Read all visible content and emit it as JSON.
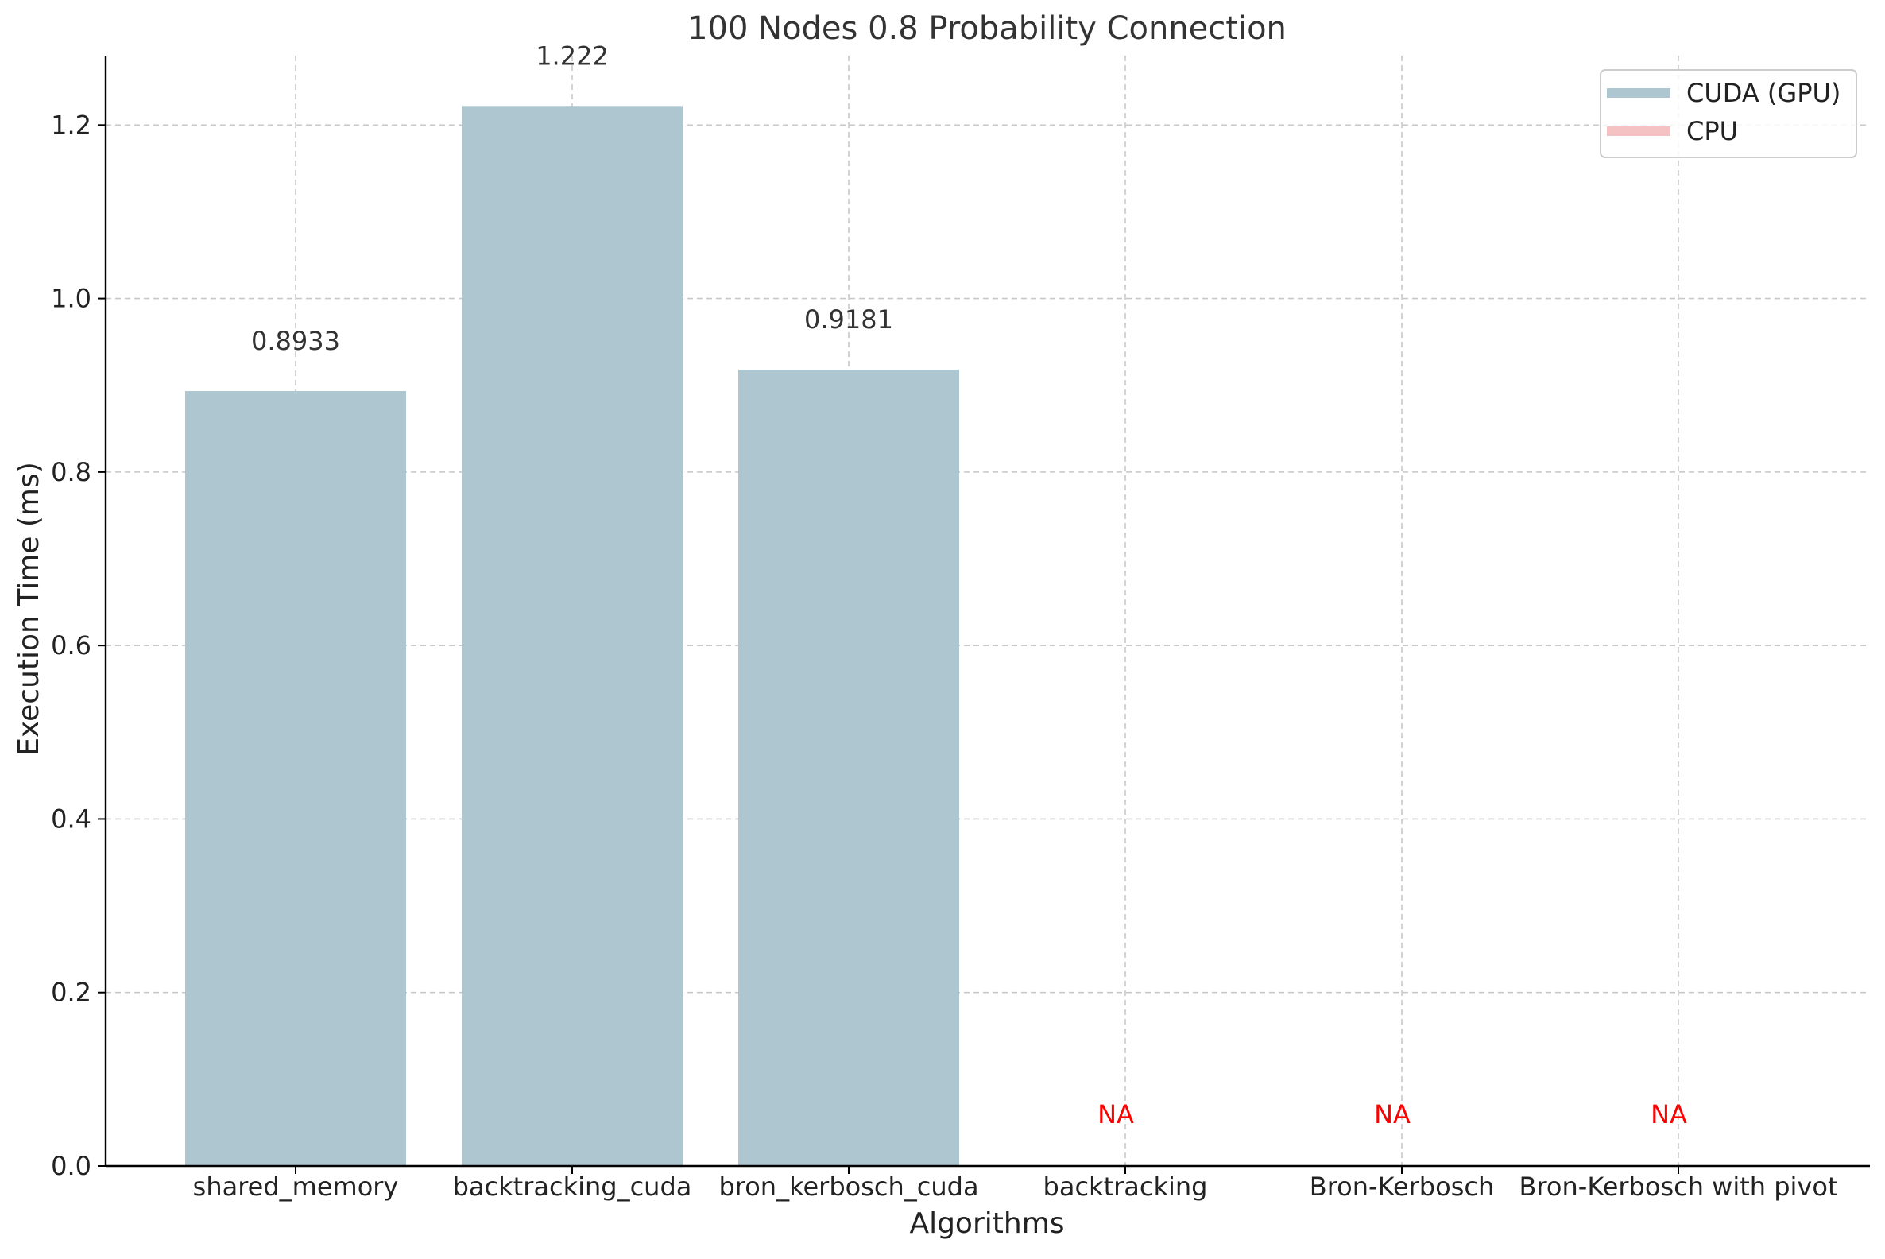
{
  "chart_data": {
    "type": "bar",
    "title": "100 Nodes 0.8 Probability Connection",
    "xlabel": "Algorithms",
    "ylabel": "Execution Time (ms)",
    "ylim": [
      0,
      1.28
    ],
    "yticks": [
      0.0,
      0.2,
      0.4,
      0.6,
      0.8,
      1.0,
      1.2
    ],
    "ytick_labels": [
      "0.0",
      "0.2",
      "0.4",
      "0.6",
      "0.8",
      "1.0",
      "1.2"
    ],
    "grid": true,
    "legend_placement": "top-right",
    "categories": [
      "shared_memory",
      "backtracking_cuda",
      "bron_kerbosch_cuda",
      "backtracking",
      "Bron-Kerbosch",
      "Bron-Kerbosch with pivot"
    ],
    "series": [
      {
        "name": "CUDA (GPU)",
        "color": "#aec6cf",
        "values": [
          0.8933,
          1.222,
          0.9181,
          null,
          null,
          null
        ],
        "labels": [
          "0.8933",
          "1.222",
          "0.9181",
          "",
          "",
          ""
        ]
      },
      {
        "name": "CPU",
        "color": "#f4c2c2",
        "values": [
          null,
          null,
          null,
          null,
          null,
          null
        ],
        "labels": [
          "",
          "",
          "",
          "NA",
          "NA",
          "NA"
        ]
      }
    ],
    "na_label_color": "#ff0000"
  }
}
